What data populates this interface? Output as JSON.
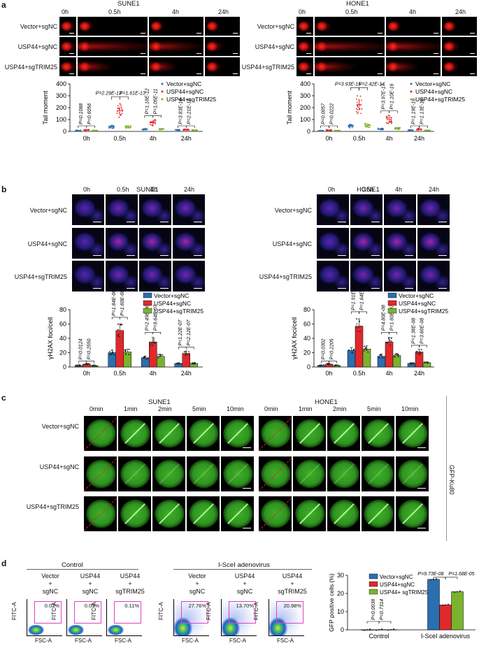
{
  "panel_labels": {
    "a": "a",
    "b": "b",
    "c": "c",
    "d": "d"
  },
  "cell_lines": {
    "left": "SUNE1",
    "right": "HONE1"
  },
  "conditions": [
    "Vector+sgNC",
    "USP44+sgNC",
    "USP44+sgTRIM25"
  ],
  "comet": {
    "timepoints": [
      "0h",
      "0.5h",
      "4h",
      "24h"
    ],
    "ylabel": "Tail moment",
    "legend": [
      "Vector+sgNC",
      "USP44+sgNC",
      "USP44+sgTRIM25"
    ]
  },
  "foci": {
    "timepoints": [
      "0h",
      "0.5h",
      "4h",
      "24h"
    ],
    "ylabel": "γH2AX foci/cell",
    "legend": [
      "Vector+sgNC",
      "USP44+sgNC",
      "USP44+sgTRIM25"
    ]
  },
  "laser": {
    "timepoints": [
      "0min",
      "1min",
      "2min",
      "5min",
      "10min"
    ],
    "side_label": "GFP-Ku80"
  },
  "flow": {
    "group_control": "Control",
    "group_isce": "I-SceI adenovirus",
    "col_top": [
      "Vector",
      "USP44",
      "USP44",
      "Vector",
      "USP44",
      "USP44"
    ],
    "col_plus": "+",
    "col_bottom": [
      "sgNC",
      "sgNC",
      "sgTRIM25",
      "sgNC",
      "sgNC",
      "sgTRIM25"
    ],
    "percents": [
      "0.02%",
      "0.09%",
      "0.11%",
      "27.76%",
      "13.70%",
      "20.98%"
    ],
    "ylabel": "FITC-A",
    "xlabel": "FSC-A"
  },
  "chart_data": [
    {
      "type": "scatter",
      "title": "SUNE1",
      "ylabel": "Tail moment",
      "ylim": [
        0,
        400
      ],
      "yticks": [
        0,
        100,
        200,
        300,
        400
      ],
      "categories": [
        "0h",
        "0.5h",
        "4h",
        "24h"
      ],
      "series": [
        {
          "name": "Vector+sgNC",
          "color": "#2a6fb0",
          "values": [
            8,
            40,
            18,
            12
          ]
        },
        {
          "name": "USP44+sgNC",
          "color": "#e0292b",
          "values": [
            12,
            175,
            75,
            15
          ]
        },
        {
          "name": "USP44+sgTRIM25",
          "color": "#7ab32e",
          "values": [
            8,
            38,
            20,
            10
          ]
        }
      ],
      "pvalues": [
        [
          "P=0.1088",
          "P=0.6056"
        ],
        [
          "P=2.29E-13",
          "P=1.61E-13"
        ],
        [
          "P=1.18E-12",
          "P=1.05E-11"
        ],
        [
          "P=3.83E-16",
          "P=2.21E-16"
        ]
      ]
    },
    {
      "type": "scatter",
      "title": "HONE1",
      "ylabel": "Tail moment",
      "ylim": [
        0,
        400
      ],
      "yticks": [
        0,
        100,
        200,
        300,
        400
      ],
      "categories": [
        "0h",
        "0.5h",
        "4h",
        "24h"
      ],
      "series": [
        {
          "name": "Vector+sgNC",
          "color": "#2a6fb0",
          "values": [
            6,
            45,
            20,
            10
          ]
        },
        {
          "name": "USP44+sgNC",
          "color": "#e0292b",
          "values": [
            10,
            225,
            100,
            18
          ]
        },
        {
          "name": "USP44+sgTRIM25",
          "color": "#7ab32e",
          "values": [
            7,
            50,
            25,
            8
          ]
        }
      ],
      "pvalues": [
        [
          "P=0.0057",
          "P=0.0222"
        ],
        [
          "P=3.93E-15",
          "P=2.42E-14"
        ],
        [
          "P=3.97E-17",
          "P=1.10E-16"
        ],
        [
          "P=1.19E-16",
          "P=1.13E-16"
        ]
      ]
    },
    {
      "type": "bar",
      "title": "SUNE1",
      "ylabel": "γH2AX foci/cell",
      "ylim": [
        0,
        80
      ],
      "yticks": [
        0,
        20,
        40,
        60,
        80
      ],
      "categories": [
        "0h",
        "0.5h",
        "4h",
        "24h"
      ],
      "series": [
        {
          "name": "Vector+sgNC",
          "color": "#2a6fb0",
          "values": [
            2,
            20,
            13,
            5
          ]
        },
        {
          "name": "USP44+sgNC",
          "color": "#e0292b",
          "values": [
            4,
            51,
            35,
            19
          ]
        },
        {
          "name": "USP44+sgTRIM25",
          "color": "#7ab32e",
          "values": [
            2,
            21,
            15,
            5
          ]
        }
      ],
      "pvalues": [
        [
          "P=0.0124",
          "P=0.2550"
        ],
        [
          "P=1.84E-08",
          "P=1.60E-08"
        ],
        [
          "P=2.49E-08",
          "P=9.64E-07"
        ],
        [
          "P=1.22E-07",
          "P=2.12E-07"
        ]
      ]
    },
    {
      "type": "bar",
      "title": "HONE1",
      "ylabel": "γH2AX foci/cell",
      "ylim": [
        0,
        80
      ],
      "yticks": [
        0,
        20,
        40,
        60,
        80
      ],
      "categories": [
        "0h",
        "0.5h",
        "4h",
        "24h"
      ],
      "series": [
        {
          "name": "Vector+sgNC",
          "color": "#2a6fb0",
          "values": [
            2,
            23,
            15,
            5
          ]
        },
        {
          "name": "USP44+sgNC",
          "color": "#e0292b",
          "values": [
            4,
            57,
            35,
            21
          ]
        },
        {
          "name": "USP44+sgTRIM25",
          "color": "#7ab32e",
          "values": [
            2,
            25,
            16,
            6
          ]
        }
      ],
      "pvalues": [
        [
          "P=0.0302",
          "P=0.2205"
        ],
        [
          "P=1.91E-08",
          "P=1.64E-08"
        ],
        [
          "P=4.80E-08",
          "P=1.60E-07"
        ],
        [
          "P=1.38E-08",
          "P=3.60E-08"
        ]
      ]
    },
    {
      "type": "bar",
      "title": "",
      "ylabel": "GFP positive cells (%)",
      "ylim": [
        0,
        30
      ],
      "yticks": [
        0,
        10,
        20,
        30
      ],
      "categories": [
        "Control",
        "I-SceI adenovirus"
      ],
      "series": [
        {
          "name": "Vector+sgNC",
          "color": "#2a6fb0",
          "values": [
            0.02,
            27.76
          ]
        },
        {
          "name": "USP44+sgNC",
          "color": "#e0292b",
          "values": [
            0.09,
            13.7
          ]
        },
        {
          "name": "USP44+ sgTRIM25",
          "color": "#7ab32e",
          "values": [
            0.11,
            20.98
          ]
        }
      ],
      "pvalues": [
        [
          "P=0.0038",
          "P=0.7314"
        ],
        [
          "P=9.73E-08",
          "P=1.68E-05"
        ]
      ]
    }
  ]
}
